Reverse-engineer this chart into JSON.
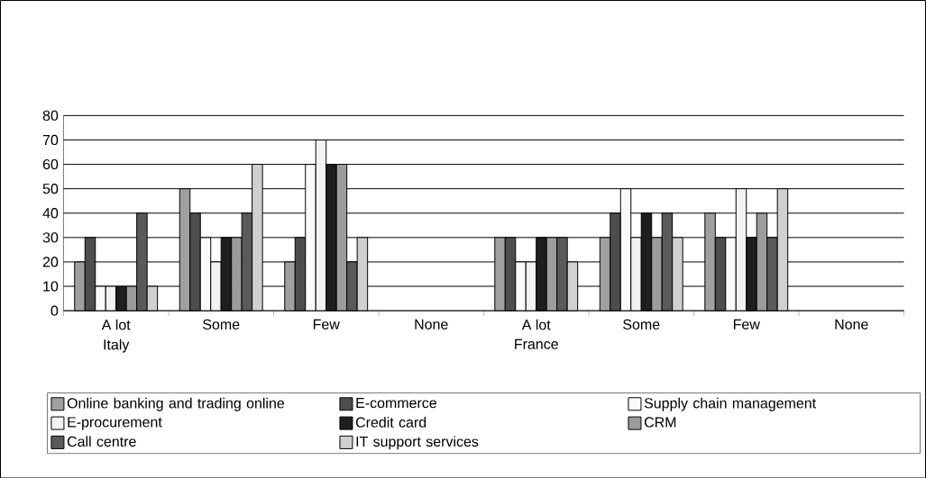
{
  "chart_data": {
    "type": "bar",
    "categories": [
      "A lot",
      "Some",
      "Few",
      "None",
      "A lot",
      "Some",
      "Few",
      "None"
    ],
    "annotations": [
      "Italy",
      "France"
    ],
    "series": [
      {
        "name": "Online banking and trading online",
        "color": "#a0a0a0",
        "values": [
          20,
          50,
          20,
          null,
          30,
          30,
          40,
          null
        ]
      },
      {
        "name": "E-commerce",
        "color": "#4d4d4d",
        "values": [
          30,
          40,
          30,
          null,
          30,
          40,
          30,
          null
        ]
      },
      {
        "name": "Supply chain management",
        "color": "#fafafa",
        "values": [
          10,
          30,
          60,
          null,
          20,
          50,
          30,
          null
        ]
      },
      {
        "name": "E-procurement",
        "color": "#f2f2f2",
        "values": [
          10,
          20,
          70,
          null,
          20,
          30,
          50,
          null
        ]
      },
      {
        "name": "Credit card",
        "color": "#1e1e1e",
        "values": [
          10,
          30,
          60,
          null,
          30,
          40,
          30,
          null
        ]
      },
      {
        "name": "CRM",
        "color": "#9c9c9c",
        "values": [
          10,
          30,
          60,
          null,
          30,
          30,
          40,
          null
        ]
      },
      {
        "name": "Call centre",
        "color": "#5a5a5a",
        "values": [
          40,
          40,
          20,
          null,
          30,
          40,
          30,
          null
        ]
      },
      {
        "name": "IT support services",
        "color": "#d0d0d0",
        "values": [
          10,
          60,
          30,
          null,
          20,
          30,
          50,
          null
        ]
      }
    ],
    "ylim": [
      0,
      80
    ],
    "yticks": [
      0,
      10,
      20,
      30,
      40,
      50,
      60,
      70,
      80
    ],
    "grid": "y",
    "legend": "bottom"
  }
}
